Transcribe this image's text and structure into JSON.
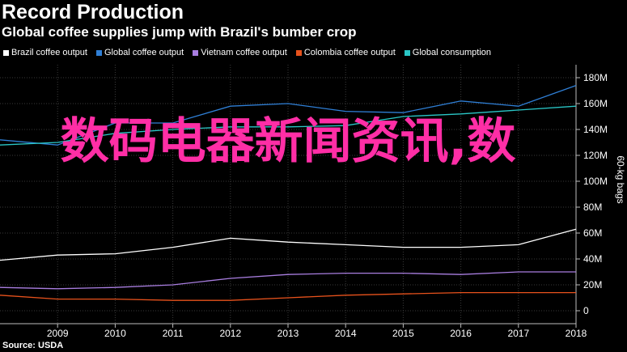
{
  "header": {
    "title": "Record Production",
    "subtitle": "Global coffee supplies jump with Brazil's bumber crop"
  },
  "footer": {
    "source": "Source: USDA"
  },
  "overlay": {
    "text": "数码电器新闻资讯,数"
  },
  "chart_data": {
    "type": "line",
    "title": "Record Production",
    "subtitle": "Global coffee supplies jump with Brazil's bumber crop",
    "xlabel": "",
    "ylabel": "60-kg bags",
    "x": [
      2008,
      2009,
      2010,
      2011,
      2012,
      2013,
      2014,
      2015,
      2016,
      2017,
      2018
    ],
    "x_ticks": [
      "2009",
      "2010",
      "2011",
      "2012",
      "2013",
      "2014",
      "2015",
      "2016",
      "2017",
      "2018"
    ],
    "xlim": [
      2008,
      2018
    ],
    "ylim": [
      -10,
      190
    ],
    "y_ticks": [
      "0",
      "20M",
      "40M",
      "60M",
      "80M",
      "100M",
      "120M",
      "140M",
      "160M",
      "180M"
    ],
    "y_tick_values": [
      0,
      20,
      40,
      60,
      80,
      100,
      120,
      140,
      160,
      180
    ],
    "grid": true,
    "legend_position": "top-left",
    "series": [
      {
        "name": "Brazil coffee output",
        "color": "#ffffff",
        "values": [
          39,
          43,
          44,
          49,
          56,
          53,
          51,
          49,
          49,
          51,
          63
        ]
      },
      {
        "name": "Global coffee output",
        "color": "#2f7fd6",
        "values": [
          132,
          128,
          145,
          145,
          158,
          160,
          154,
          153,
          162,
          158,
          174
        ]
      },
      {
        "name": "Vietnam coffee output",
        "color": "#a97ee0",
        "values": [
          18,
          17,
          18,
          20,
          25,
          28,
          29,
          29,
          28,
          30,
          30
        ]
      },
      {
        "name": "Colombia coffee output",
        "color": "#e8521c",
        "values": [
          12,
          9,
          9,
          8,
          8,
          10,
          12,
          13,
          14,
          14,
          14
        ]
      },
      {
        "name": "Global consumption",
        "color": "#2ac7c7",
        "values": [
          128,
          130,
          137,
          140,
          142,
          142,
          143,
          150,
          152,
          155,
          158
        ]
      }
    ]
  }
}
